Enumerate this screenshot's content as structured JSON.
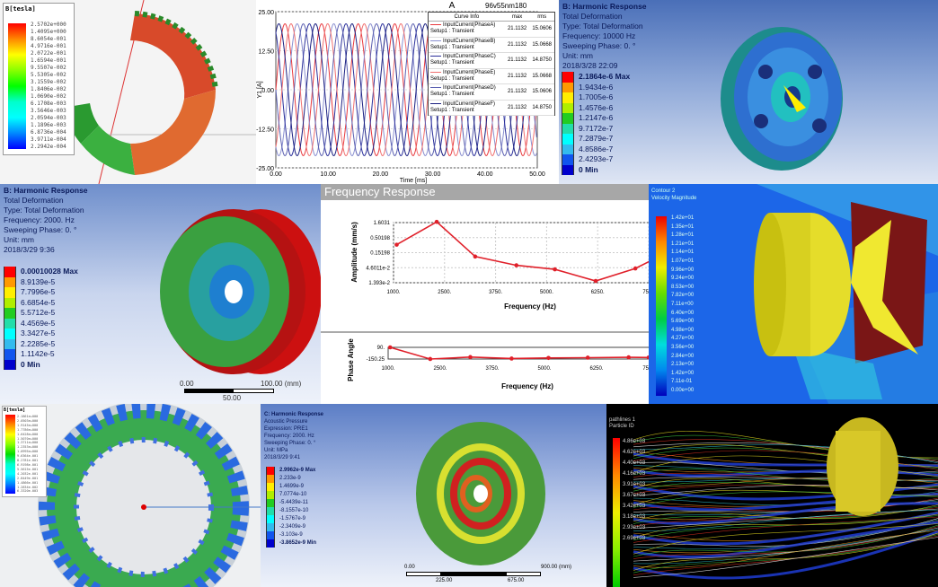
{
  "panel_magnet": {
    "legend_title": "B[tesla]",
    "legend_values": [
      "2.5702e+000",
      "1.4095e+000",
      "8.6054e-001",
      "4.9716e-001",
      "2.0722e-001",
      "1.6594e-001",
      "9.5507e-002",
      "5.5305e-002",
      "3.1559e-002",
      "1.8406e-002",
      "1.0690e-002",
      "6.1708e-003",
      "3.5646e-003",
      "2.0594e-003",
      "1.1896e-003",
      "6.8736e-004",
      "3.9711e-004",
      "2.2942e-004"
    ]
  },
  "panel_current": {
    "project": "96v55nm180",
    "chart_data": {
      "type": "line",
      "title": "A",
      "xlabel": "Time [ms]",
      "ylabel": "Y1 [A]",
      "xlim": [
        0,
        50
      ],
      "ylim": [
        -25,
        25
      ],
      "xticks": [
        "0.00",
        "10.00",
        "20.00",
        "30.00",
        "40.00",
        "50.00"
      ],
      "yticks": [
        "25.00",
        "12.50",
        "0.00",
        "-12.50",
        "-25.00"
      ],
      "amplitude": 21.1132,
      "period_ms": 7,
      "series": [
        {
          "name": "InputCurrent(PhaseA)",
          "sub": "Setup1 : Transient",
          "max": "21.1132",
          "rms": "15.0606",
          "color": "#e8383d",
          "phase_deg": 0
        },
        {
          "name": "InputCurrent(PhaseB)",
          "sub": "Setup1 : Transient",
          "max": "21.1132",
          "rms": "15.0668",
          "color": "#8a8fd0",
          "phase_deg": 120
        },
        {
          "name": "InputCurrent(PhaseC)",
          "sub": "Setup1 : Transient",
          "max": "21.1132",
          "rms": "14.8750",
          "color": "#2a2f9a",
          "phase_deg": 240
        },
        {
          "name": "InputCurrent(PhaseE)",
          "sub": "Setup1 : Transient",
          "max": "21.1132",
          "rms": "15.0668",
          "color": "#f07070",
          "phase_deg": 60
        },
        {
          "name": "InputCurrent(PhaseD)",
          "sub": "Setup1 : Transient",
          "max": "21.1132",
          "rms": "15.0606",
          "color": "#5a5fb0",
          "phase_deg": 180
        },
        {
          "name": "InputCurrent(PhaseF)",
          "sub": "Setup1 : Transient",
          "max": "21.1132",
          "rms": "14.8750",
          "color": "#1a1f80",
          "phase_deg": 300
        }
      ],
      "legend_headers": [
        "Curve Info",
        "max",
        "rms"
      ]
    }
  },
  "panel_harmonic1": {
    "lines": [
      "B: Harmonic Response",
      "Total Deformation",
      "Type: Total Deformation",
      "Frequency: 10000 Hz",
      "Sweeping Phase: 0. °",
      "Unit: mm",
      "2018/3/28 22:09"
    ],
    "legend": [
      "2.1864e-6 Max",
      "1.9434e-6",
      "1.7005e-6",
      "1.4576e-6",
      "1.2147e-6",
      "9.7172e-7",
      "7.2879e-7",
      "4.8586e-7",
      "2.4293e-7",
      "0 Min"
    ]
  },
  "panel_harmonic2": {
    "lines": [
      "B: Harmonic Response",
      "Total Deformation",
      "Type: Total Deformation",
      "Frequency: 2000. Hz",
      "Sweeping Phase: 0. °",
      "Unit: mm",
      "2018/3/29 9:36"
    ],
    "legend": [
      "0.00010028 Max",
      "8.9139e-5",
      "7.7996e-5",
      "6.6854e-5",
      "5.5712e-5",
      "4.4569e-5",
      "3.3427e-5",
      "2.2285e-5",
      "1.1142e-5",
      "0 Min"
    ],
    "scale": {
      "left": "0.00",
      "right": "100.00 (mm)",
      "mid": "50.00"
    }
  },
  "panel_freq": {
    "title": "Frequency Response",
    "chart_data": [
      {
        "type": "line",
        "xlabel": "Frequency (Hz)",
        "ylabel": "Amplitude (mm/s)",
        "yscale": "log",
        "xlim": [
          1000,
          7500
        ],
        "ylim": [
          0.01393,
          1.6031
        ],
        "xticks": [
          "1000.",
          "2500.",
          "3750.",
          "5000.",
          "6250.",
          "7500"
        ],
        "yticks": [
          "1.6031",
          "0.50198",
          "0.15198",
          "4.6011e-2",
          "1.393e-2"
        ],
        "x": [
          1080,
          2100,
          3080,
          4130,
          5110,
          6150,
          7160,
          7700
        ],
        "y": [
          0.28,
          1.7,
          0.11,
          0.055,
          0.04,
          0.016,
          0.043,
          0.1
        ],
        "color": "#e0202a",
        "grid": true
      },
      {
        "type": "line",
        "xlabel": "Frequency (Hz)",
        "ylabel": "Phase Angle",
        "xlim": [
          1000,
          7500
        ],
        "ylim": [
          -150.25,
          90
        ],
        "xticks": [
          "1000.",
          "2500.",
          "3750.",
          "5000.",
          "6250.",
          "7500"
        ],
        "yticks": [
          "90.",
          "-150.25"
        ],
        "x": [
          1050,
          2050,
          3050,
          4080,
          5000,
          5980,
          7000,
          7500
        ],
        "y": [
          90,
          -150,
          -110,
          -140,
          -128,
          -122,
          -115,
          -118
        ],
        "color": "#e0202a"
      }
    ]
  },
  "panel_cfd": {
    "legend_title": "Contour 2",
    "legend_sub": "Velocity Magnitude",
    "legend_values": [
      "1.42e+01",
      "1.35e+01",
      "1.28e+01",
      "1.21e+01",
      "1.14e+01",
      "1.07e+01",
      "9.96e+00",
      "9.24e+00",
      "8.53e+00",
      "7.82e+00",
      "7.11e+00",
      "6.40e+00",
      "5.69e+00",
      "4.98e+00",
      "4.27e+00",
      "3.56e+00",
      "2.84e+00",
      "2.13e+00",
      "1.42e+00",
      "7.11e-01",
      "0.00e+00"
    ]
  },
  "panel_ring": {
    "legend_title": "B[tesla]",
    "legend_values": [
      "2.1861e+000",
      "2.0503e+000",
      "1.9145e+000",
      "1.7786e+000",
      "1.6428e+000",
      "1.5070e+000",
      "1.3711e+000",
      "1.2353e+000",
      "1.0995e+000",
      "9.6364e-001",
      "8.2781e-001",
      "6.9198e-001",
      "5.5615e-001",
      "4.2032e-001",
      "2.8449e-001",
      "1.4866e-001",
      "1.2834e-002",
      "6.3320e-003"
    ]
  },
  "panel_acoustic": {
    "lines": [
      "C: Harmonic Response",
      "Acoustic Pressure",
      "Expression: PRE1",
      "Frequency: 2000. Hz",
      "Sweeping Phase: 0. °",
      "Unit: MPa",
      "2018/3/29 9:41"
    ],
    "legend": [
      "2.9962e-9 Max",
      "2.233e-9",
      "1.4699e-9",
      "7.0774e-10",
      "-5.4439e-11",
      "-8.1557e-10",
      "-1.5767e-9",
      "-2.3409e-9",
      "-3.103e-9",
      "-3.8652e-9 Min"
    ],
    "scale": {
      "left": "0.00",
      "right": "900.00 (mm)",
      "mid1": "225.00",
      "mid2": "675.00"
    }
  },
  "panel_stream": {
    "legend_title": "pathlines 1",
    "legend_sub": "Particle ID",
    "legend_values": [
      "4.86e+03",
      "4.62e+03",
      "4.40e+03",
      "4.16e+03",
      "3.91e+03",
      "3.67e+03",
      "3.42e+03",
      "3.18e+03",
      "2.93e+03",
      "2.69e+03"
    ]
  },
  "colors": {
    "ansys_ramp": [
      "#ff0000",
      "#ff9900",
      "#ffee00",
      "#b0ee00",
      "#22cc22",
      "#22ddaa",
      "#00ffff",
      "#33bbee",
      "#1155ee",
      "#0000cc"
    ]
  }
}
